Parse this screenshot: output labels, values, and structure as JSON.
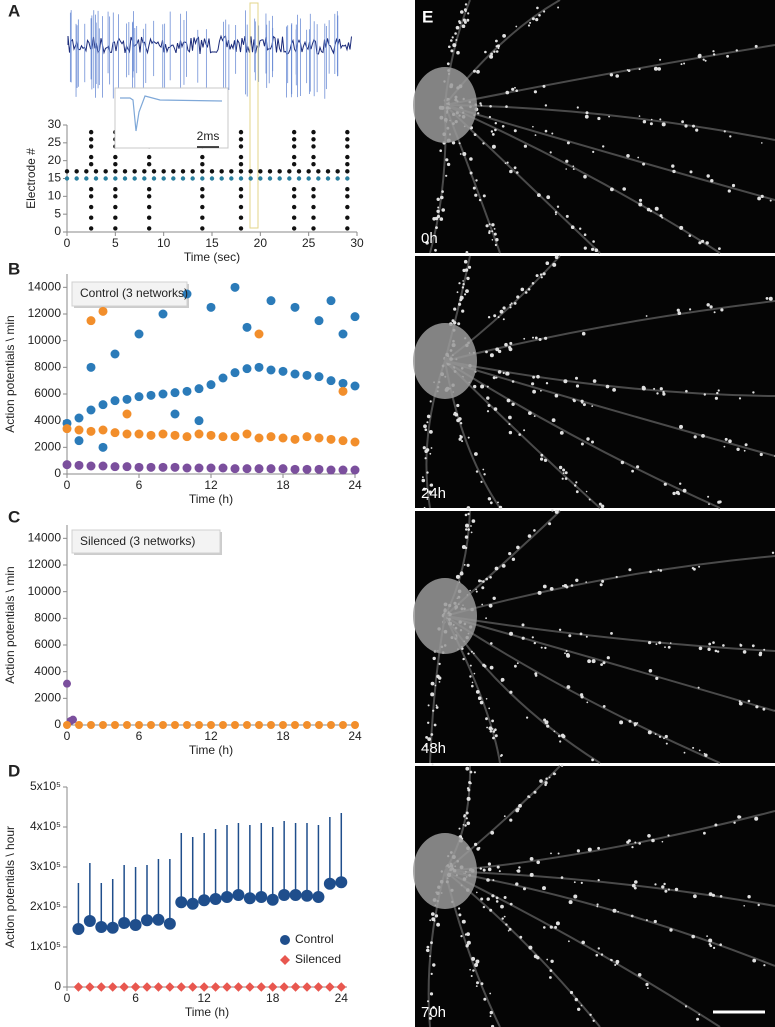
{
  "chart_data": [
    {
      "panel": "A",
      "type": "scatter",
      "annotation": "2ms",
      "x_label": "Time (sec)",
      "y_label": "Electrode #",
      "xlim": [
        0,
        30
      ],
      "ylim": [
        0,
        30
      ],
      "xticks": [
        0,
        5,
        10,
        15,
        20,
        25,
        30
      ],
      "yticks": [
        0,
        5,
        10,
        15,
        20,
        25,
        30
      ],
      "series": [
        {
          "color": "#111111",
          "x": [
            2.5,
            2.5,
            2.5,
            2.5,
            2.5,
            2.5,
            2.5,
            2.5,
            2.5,
            2.5,
            5,
            5,
            5,
            5,
            5,
            5,
            5,
            5,
            5,
            5,
            8.5,
            8.5,
            8.5,
            8.5,
            8.5,
            8.5,
            8.5,
            8.5,
            8.5,
            8.5,
            14,
            14,
            14,
            14,
            14,
            14,
            14,
            14,
            14,
            14,
            18,
            18,
            18,
            18,
            18,
            18,
            18,
            18,
            18,
            18,
            23.5,
            23.5,
            23.5,
            23.5,
            23.5,
            23.5,
            23.5,
            23.5,
            23.5,
            23.5,
            25.5,
            25.5,
            25.5,
            25.5,
            25.5,
            25.5,
            25.5,
            25.5,
            25.5,
            25.5,
            29,
            29,
            29,
            29,
            29,
            29,
            29,
            29,
            29,
            29
          ],
          "values": [
            1,
            4,
            7,
            10,
            12,
            19,
            21,
            24,
            26,
            28,
            1,
            4,
            7,
            10,
            12,
            19,
            21,
            24,
            26,
            28,
            1,
            4,
            7,
            10,
            12,
            19,
            21,
            24,
            26,
            28,
            1,
            4,
            7,
            10,
            12,
            19,
            21,
            24,
            26,
            28,
            1,
            4,
            7,
            10,
            12,
            19,
            21,
            24,
            26,
            28,
            1,
            4,
            7,
            10,
            12,
            19,
            21,
            24,
            26,
            28,
            1,
            4,
            7,
            10,
            12,
            19,
            21,
            24,
            26,
            28,
            1,
            4,
            7,
            10,
            12,
            19,
            21,
            24,
            26,
            28
          ]
        },
        {
          "color": "#111111",
          "x": [
            0,
            1,
            2,
            3,
            4,
            5,
            6,
            7,
            8,
            9,
            10,
            11,
            12,
            13,
            14,
            15,
            16,
            17,
            18,
            19,
            20,
            21,
            22,
            23,
            24,
            25,
            26,
            27,
            28,
            29
          ],
          "values": [
            17,
            17,
            17,
            17,
            17,
            17,
            17,
            17,
            17,
            17,
            17,
            17,
            17,
            17,
            17,
            17,
            17,
            17,
            17,
            17,
            17,
            17,
            17,
            17,
            17,
            17,
            17,
            17,
            17,
            17
          ]
        },
        {
          "color": "#2a7f9e",
          "x": [
            0,
            1,
            2,
            3,
            4,
            5,
            6,
            7,
            8,
            9,
            10,
            11,
            12,
            13,
            14,
            15,
            16,
            17,
            18,
            19,
            20,
            21,
            22,
            23,
            24,
            25,
            26,
            27,
            28,
            29
          ],
          "values": [
            15,
            15,
            15,
            15,
            15,
            15,
            15,
            15,
            15,
            15,
            15,
            15,
            15,
            15,
            15,
            15,
            15,
            15,
            15,
            15,
            15,
            15,
            15,
            15,
            15,
            15,
            15,
            15,
            15,
            15
          ]
        }
      ]
    },
    {
      "panel": "B",
      "type": "scatter",
      "annotation": "Control (3 networks)",
      "x_label": "Time (h)",
      "y_label": "Action potentials \\ min",
      "xlim": [
        0,
        24
      ],
      "ylim": [
        0,
        15000
      ],
      "xticks": [
        0,
        6,
        12,
        18,
        24
      ],
      "yticks": [
        0,
        2000,
        4000,
        6000,
        8000,
        10000,
        12000,
        14000
      ],
      "series": [
        {
          "color": "#2b7bb9",
          "x": [
            0,
            1,
            2,
            3,
            4,
            5,
            6,
            7,
            8,
            9,
            10,
            11,
            12,
            13,
            14,
            15,
            16,
            17,
            18,
            19,
            20,
            21,
            22,
            23,
            24,
            2,
            4,
            6,
            8,
            10,
            12,
            14,
            15,
            17,
            19,
            21,
            22,
            23,
            24,
            1,
            3,
            9,
            11
          ],
          "values": [
            3800,
            4200,
            4800,
            5200,
            5500,
            5600,
            5800,
            5900,
            6000,
            6100,
            6200,
            6400,
            6700,
            7200,
            7600,
            7900,
            8000,
            7800,
            7700,
            7500,
            7400,
            7300,
            7000,
            6800,
            6600,
            8000,
            9000,
            10500,
            12000,
            13500,
            12500,
            14000,
            11000,
            13000,
            12500,
            11500,
            13000,
            10500,
            11800,
            2500,
            2000,
            4500,
            4000
          ]
        },
        {
          "color": "#f28e2b",
          "x": [
            0,
            1,
            2,
            3,
            4,
            5,
            6,
            7,
            8,
            9,
            10,
            11,
            12,
            13,
            14,
            15,
            16,
            17,
            18,
            19,
            20,
            21,
            22,
            23,
            24,
            2,
            3,
            5,
            16,
            23
          ],
          "values": [
            3400,
            3300,
            3200,
            3300,
            3100,
            3000,
            3000,
            2900,
            3000,
            2900,
            2800,
            3000,
            2900,
            2800,
            2800,
            3000,
            2700,
            2800,
            2700,
            2600,
            2800,
            2700,
            2600,
            2500,
            2400,
            11500,
            12200,
            4500,
            10500,
            6200
          ]
        },
        {
          "color": "#7b4f9d",
          "x": [
            0,
            1,
            2,
            3,
            4,
            5,
            6,
            7,
            8,
            9,
            10,
            11,
            12,
            13,
            14,
            15,
            16,
            17,
            18,
            19,
            20,
            21,
            22,
            23,
            24
          ],
          "values": [
            700,
            650,
            600,
            600,
            550,
            550,
            500,
            500,
            500,
            500,
            450,
            450,
            450,
            450,
            400,
            400,
            400,
            400,
            400,
            350,
            350,
            350,
            300,
            300,
            300
          ]
        }
      ]
    },
    {
      "panel": "C",
      "type": "scatter",
      "annotation": "Silenced (3 networks)",
      "x_label": "Time (h)",
      "y_label": "Action potentials \\ min",
      "xlim": [
        0,
        24
      ],
      "ylim": [
        0,
        15000
      ],
      "xticks": [
        0,
        6,
        12,
        18,
        24
      ],
      "yticks": [
        0,
        2000,
        4000,
        6000,
        8000,
        10000,
        12000,
        14000
      ],
      "series": [
        {
          "color": "#7b4f9d",
          "x": [
            0,
            0.3,
            0.5
          ],
          "values": [
            3100,
            300,
            400
          ]
        },
        {
          "color": "#f28e2b",
          "x": [
            0,
            1,
            2,
            3,
            4,
            5,
            6,
            7,
            8,
            9,
            10,
            11,
            12,
            13,
            14,
            15,
            16,
            17,
            18,
            19,
            20,
            21,
            22,
            23,
            24
          ],
          "values": [
            0,
            0,
            0,
            0,
            0,
            0,
            0,
            0,
            0,
            0,
            0,
            0,
            0,
            0,
            0,
            0,
            0,
            0,
            0,
            0,
            0,
            0,
            0,
            0,
            0
          ]
        }
      ]
    },
    {
      "panel": "D",
      "type": "scatter",
      "x_label": "Time (h)",
      "y_label": "Action potentials \\ hour",
      "xlim": [
        0,
        24.5
      ],
      "ylim": [
        0,
        500000
      ],
      "xticks": [
        0,
        6,
        12,
        18,
        24
      ],
      "yticks": [
        0,
        {
          "value": 100000,
          "label": "1x10⁵"
        },
        {
          "value": 200000,
          "label": "2x10⁵"
        },
        {
          "value": 300000,
          "label": "3x10⁵"
        },
        {
          "value": 400000,
          "label": "4x10⁵"
        },
        {
          "value": 500000,
          "label": "5x10⁵"
        }
      ],
      "legend": "lower right",
      "x": [
        1,
        2,
        3,
        4,
        5,
        6,
        7,
        8,
        9,
        10,
        11,
        12,
        13,
        14,
        15,
        16,
        17,
        18,
        19,
        20,
        21,
        22,
        23,
        24
      ],
      "series": [
        {
          "name": "Control",
          "color": "#1f4e8c",
          "marker": "circle",
          "values": [
            145000,
            165000,
            150000,
            148000,
            160000,
            155000,
            167000,
            168000,
            158000,
            212000,
            208000,
            217000,
            220000,
            225000,
            230000,
            222000,
            225000,
            218000,
            230000,
            230000,
            228000,
            225000,
            258000,
            262000
          ],
          "errors": [
            115000,
            145000,
            110000,
            122000,
            145000,
            145000,
            138000,
            152000,
            162000,
            173000,
            167000,
            168000,
            175000,
            180000,
            180000,
            183000,
            185000,
            182000,
            185000,
            180000,
            182000,
            180000,
            167000,
            173000
          ]
        },
        {
          "name": "Silenced",
          "color": "#e8574f",
          "marker": "diamond",
          "values": [
            0,
            0,
            0,
            0,
            0,
            0,
            0,
            0,
            0,
            0,
            0,
            0,
            0,
            0,
            0,
            0,
            0,
            0,
            0,
            0,
            0,
            0,
            0,
            0
          ]
        }
      ]
    }
  ],
  "images": {
    "panel": "E",
    "labels": [
      "0h",
      "24h",
      "48h",
      "70h"
    ]
  }
}
